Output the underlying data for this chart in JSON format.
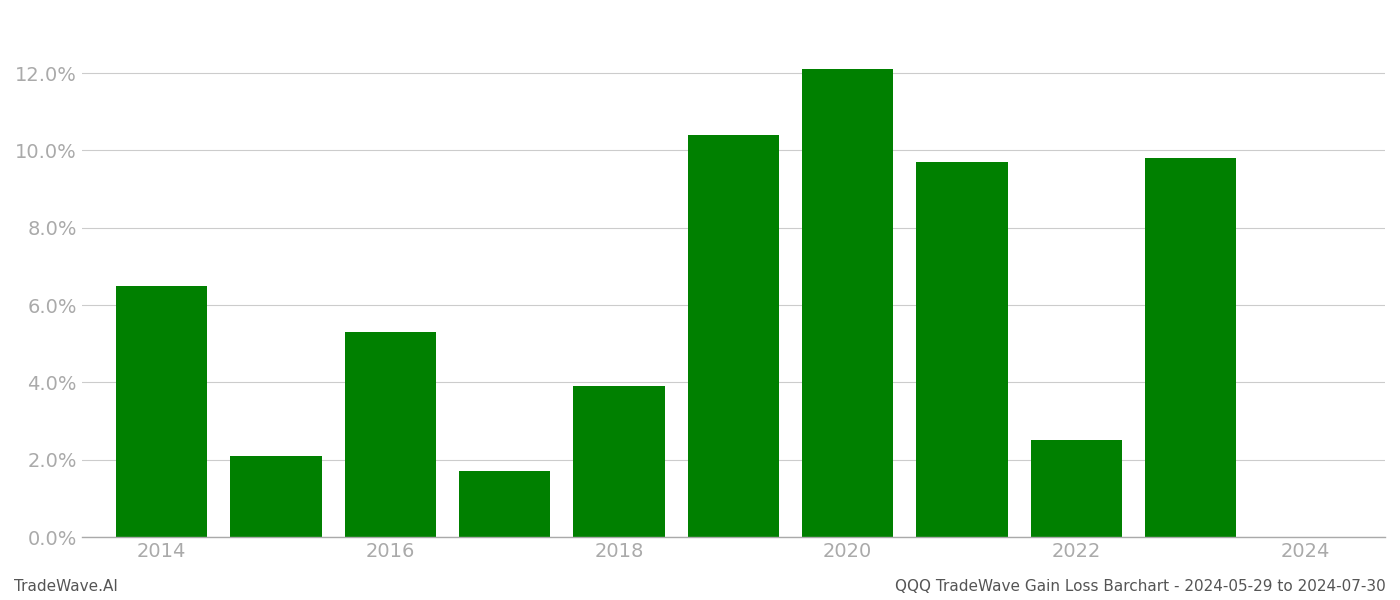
{
  "years": [
    2014,
    2015,
    2016,
    2017,
    2018,
    2019,
    2020,
    2021,
    2022,
    2023
  ],
  "values": [
    0.065,
    0.021,
    0.053,
    0.017,
    0.039,
    0.104,
    0.121,
    0.097,
    0.025,
    0.098
  ],
  "bar_color": "#008000",
  "background_color": "#ffffff",
  "grid_color": "#cccccc",
  "axis_color": "#aaaaaa",
  "tick_color": "#aaaaaa",
  "ylim": [
    0,
    0.135
  ],
  "yticks": [
    0.0,
    0.02,
    0.04,
    0.06,
    0.08,
    0.1,
    0.12
  ],
  "xtick_labels": [
    "2014",
    "2016",
    "2018",
    "2020",
    "2022",
    "2024"
  ],
  "xtick_years": [
    2014,
    2016,
    2018,
    2020,
    2022,
    2024
  ],
  "footer_left": "TradeWave.AI",
  "footer_right": "QQQ TradeWave Gain Loss Barchart - 2024-05-29 to 2024-07-30",
  "bar_width": 0.8
}
